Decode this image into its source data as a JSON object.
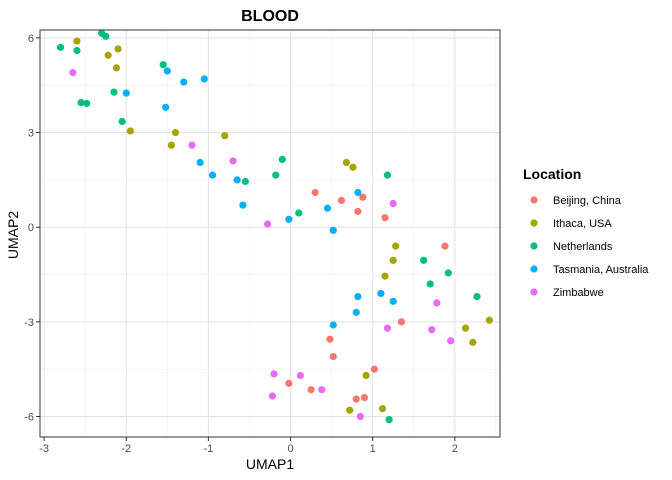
{
  "chart_data": {
    "type": "scatter",
    "title": "BLOOD",
    "xlabel": "UMAP1",
    "ylabel": "UMAP2",
    "xlim": [
      -3.05,
      2.55
    ],
    "ylim": [
      -6.65,
      6.25
    ],
    "x_ticks": [
      -3,
      -2,
      -1,
      0,
      1,
      2
    ],
    "y_ticks": [
      -6,
      -3,
      0,
      3,
      6
    ],
    "x_tick_labels": [
      "-3",
      "-2",
      "-1",
      "0",
      "1",
      "2"
    ],
    "y_tick_labels": [
      "-6",
      "-3",
      "0",
      "3",
      "6"
    ],
    "grid": true,
    "legend_position": "right",
    "legend_title": "Location",
    "series": [
      {
        "name": "Beijing, China",
        "color": "#F8766D",
        "points": [
          [
            0.3,
            1.1
          ],
          [
            0.62,
            0.85
          ],
          [
            0.82,
            0.5
          ],
          [
            0.88,
            0.95
          ],
          [
            1.15,
            0.3
          ],
          [
            1.88,
            -0.6
          ],
          [
            1.35,
            -3.0
          ],
          [
            0.48,
            -3.55
          ],
          [
            0.52,
            -4.1
          ],
          [
            1.02,
            -4.5
          ],
          [
            -0.02,
            -4.95
          ],
          [
            0.25,
            -5.15
          ],
          [
            0.8,
            -5.45
          ],
          [
            0.9,
            -5.4
          ]
        ]
      },
      {
        "name": "Ithaca, USA",
        "color": "#A3A500",
        "points": [
          [
            -2.6,
            5.9
          ],
          [
            -2.22,
            5.45
          ],
          [
            -2.12,
            5.05
          ],
          [
            -2.1,
            5.65
          ],
          [
            -1.4,
            3.0
          ],
          [
            -1.45,
            2.6
          ],
          [
            -1.95,
            3.05
          ],
          [
            -0.8,
            2.9
          ],
          [
            0.68,
            2.05
          ],
          [
            0.76,
            1.9
          ],
          [
            1.28,
            -0.6
          ],
          [
            1.25,
            -1.05
          ],
          [
            1.15,
            -1.55
          ],
          [
            0.92,
            -4.7
          ],
          [
            0.72,
            -5.8
          ],
          [
            1.12,
            -5.75
          ],
          [
            2.13,
            -3.2
          ],
          [
            2.22,
            -3.65
          ],
          [
            2.42,
            -2.95
          ]
        ]
      },
      {
        "name": "Netherlands",
        "color": "#00BF7D",
        "points": [
          [
            -2.8,
            5.7
          ],
          [
            -2.6,
            5.6
          ],
          [
            -2.3,
            6.15
          ],
          [
            -2.25,
            6.05
          ],
          [
            -2.55,
            3.95
          ],
          [
            -2.48,
            3.92
          ],
          [
            -2.15,
            4.28
          ],
          [
            -2.05,
            3.35
          ],
          [
            -1.55,
            5.15
          ],
          [
            -0.1,
            2.15
          ],
          [
            -0.55,
            1.45
          ],
          [
            -0.18,
            1.65
          ],
          [
            0.1,
            0.45
          ],
          [
            1.18,
            1.65
          ],
          [
            1.62,
            -1.05
          ],
          [
            1.92,
            -1.45
          ],
          [
            1.7,
            -1.8
          ],
          [
            2.27,
            -2.2
          ],
          [
            1.2,
            -6.1
          ]
        ]
      },
      {
        "name": "Tasmania, Australia",
        "color": "#00B0F6",
        "points": [
          [
            -1.5,
            4.95
          ],
          [
            -1.05,
            4.7
          ],
          [
            -1.3,
            4.6
          ],
          [
            -2.0,
            4.25
          ],
          [
            -1.52,
            3.8
          ],
          [
            -1.1,
            2.05
          ],
          [
            -0.95,
            1.65
          ],
          [
            -0.65,
            1.5
          ],
          [
            -0.58,
            0.7
          ],
          [
            -0.02,
            0.25
          ],
          [
            0.45,
            0.6
          ],
          [
            0.52,
            -0.1
          ],
          [
            0.82,
            1.1
          ],
          [
            0.82,
            -2.2
          ],
          [
            1.1,
            -2.1
          ],
          [
            1.25,
            -2.35
          ],
          [
            0.8,
            -2.7
          ],
          [
            0.52,
            -3.1
          ]
        ]
      },
      {
        "name": "Zimbabwe",
        "color": "#E76BF3",
        "points": [
          [
            -2.65,
            4.9
          ],
          [
            -1.2,
            2.6
          ],
          [
            -0.7,
            2.1
          ],
          [
            -0.28,
            0.1
          ],
          [
            1.25,
            0.75
          ],
          [
            1.78,
            -2.4
          ],
          [
            1.18,
            -3.2
          ],
          [
            1.72,
            -3.25
          ],
          [
            1.95,
            -3.6
          ],
          [
            -0.2,
            -4.65
          ],
          [
            0.12,
            -4.7
          ],
          [
            -0.22,
            -5.35
          ],
          [
            0.38,
            -5.15
          ],
          [
            0.85,
            -6.0
          ]
        ]
      }
    ]
  }
}
